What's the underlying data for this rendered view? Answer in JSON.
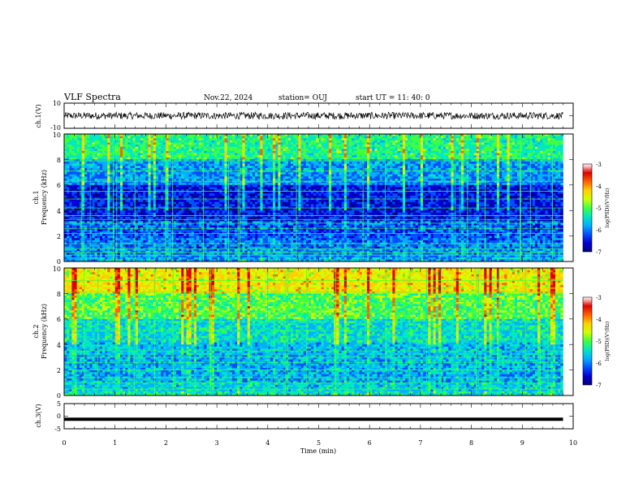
{
  "header": {
    "title": "VLF Spectra",
    "date": "Nov.22, 2024",
    "station": "station= OUJ",
    "start": "start  UT =   11: 40: 0"
  },
  "colors": {
    "colormap": [
      "#00007a",
      "#0000d0",
      "#0050ff",
      "#00b0ff",
      "#00e8c0",
      "#40ff40",
      "#d0ff00",
      "#ffd000",
      "#ff6000",
      "#e00000",
      "#ffffff"
    ]
  },
  "chart_data": [
    {
      "type": "line",
      "name": "ch1-waveform",
      "ylabel": "ch.1(V)",
      "ylim": [
        -10,
        10
      ],
      "ytick_labels": [
        "10",
        "-10"
      ],
      "xlim": [
        0,
        9.8
      ],
      "baseline": 0,
      "amplitude": 2.8
    },
    {
      "type": "heatmap",
      "name": "ch1-spectrogram",
      "ylabel": "ch.1 Frequency (kHz)",
      "ylabel_lines": [
        "ch.1",
        "Frequency (kHz)"
      ],
      "ylim": [
        0,
        10
      ],
      "ytick_labels": [
        "0",
        "2",
        "4",
        "6",
        "8",
        "10"
      ],
      "xlim": [
        0,
        9.8
      ],
      "colorbar": {
        "label": "log(PSD)(V²/Hz)",
        "range": [
          -7,
          -3
        ],
        "tick_labels": [
          "-3",
          "-4",
          "-5",
          "-6",
          "-7"
        ]
      },
      "bands": [
        {
          "f": [
            0.0,
            0.4
          ],
          "level": 0.35
        },
        {
          "f": [
            0.4,
            1.0
          ],
          "level": 0.3
        },
        {
          "f": [
            1.0,
            1.9
          ],
          "level": 0.28
        },
        {
          "f": [
            1.9,
            3.2
          ],
          "level": 0.25
        },
        {
          "f": [
            3.2,
            4.2
          ],
          "level": 0.18
        },
        {
          "f": [
            4.2,
            6.0
          ],
          "level": 0.18
        },
        {
          "f": [
            6.0,
            8.0
          ],
          "level": 0.32
        },
        {
          "f": [
            8.0,
            10.0
          ],
          "level": 0.5
        }
      ],
      "lines_khz": [
        0.5,
        0.7,
        1.0,
        1.4,
        2.2,
        2.6,
        3.0,
        3.3,
        3.6,
        4.2,
        4.9,
        5.5,
        6.3,
        7.1,
        7.9
      ]
    },
    {
      "type": "heatmap",
      "name": "ch2-spectrogram",
      "ylabel": "ch.2 Frequency (kHz)",
      "ylabel_lines": [
        "ch.2",
        "Frequency (kHz)"
      ],
      "ylim": [
        0,
        10
      ],
      "ytick_labels": [
        "0",
        "2",
        "4",
        "6",
        "8",
        "10"
      ],
      "xlim": [
        0,
        9.8
      ],
      "colorbar": {
        "label": "log(PSD)(V²/Hz)",
        "range": [
          -7,
          -3
        ],
        "tick_labels": [
          "-3",
          "-4",
          "-5",
          "-6",
          "-7"
        ]
      },
      "bands": [
        {
          "f": [
            0.0,
            0.4
          ],
          "level": 0.45
        },
        {
          "f": [
            0.4,
            1.0
          ],
          "level": 0.4
        },
        {
          "f": [
            1.0,
            1.9
          ],
          "level": 0.35
        },
        {
          "f": [
            1.9,
            3.2
          ],
          "level": 0.35
        },
        {
          "f": [
            3.2,
            4.2
          ],
          "level": 0.38
        },
        {
          "f": [
            4.2,
            6.0
          ],
          "level": 0.42
        },
        {
          "f": [
            6.0,
            8.0
          ],
          "level": 0.55
        },
        {
          "f": [
            8.0,
            10.0
          ],
          "level": 0.7
        }
      ],
      "lines_khz": [
        0.5,
        1.0,
        1.4,
        2.0,
        2.6,
        3.0,
        3.5,
        4.4,
        5.1,
        5.8,
        6.5,
        7.2,
        8.1,
        9.0
      ]
    },
    {
      "type": "line",
      "name": "ch3-waveform",
      "ylabel": "ch.3(V)",
      "ylim": [
        -5,
        5
      ],
      "ytick_labels": [
        "5",
        "0",
        "-5"
      ],
      "xlim": [
        0,
        9.8
      ],
      "baseline": -1.2,
      "amplitude": 0.3
    }
  ],
  "x_axis": {
    "label": "Time  (min)",
    "range": [
      0,
      10
    ],
    "tick_labels": [
      "0",
      "1",
      "2",
      "3",
      "4",
      "5",
      "6",
      "7",
      "8",
      "9",
      "10"
    ]
  }
}
